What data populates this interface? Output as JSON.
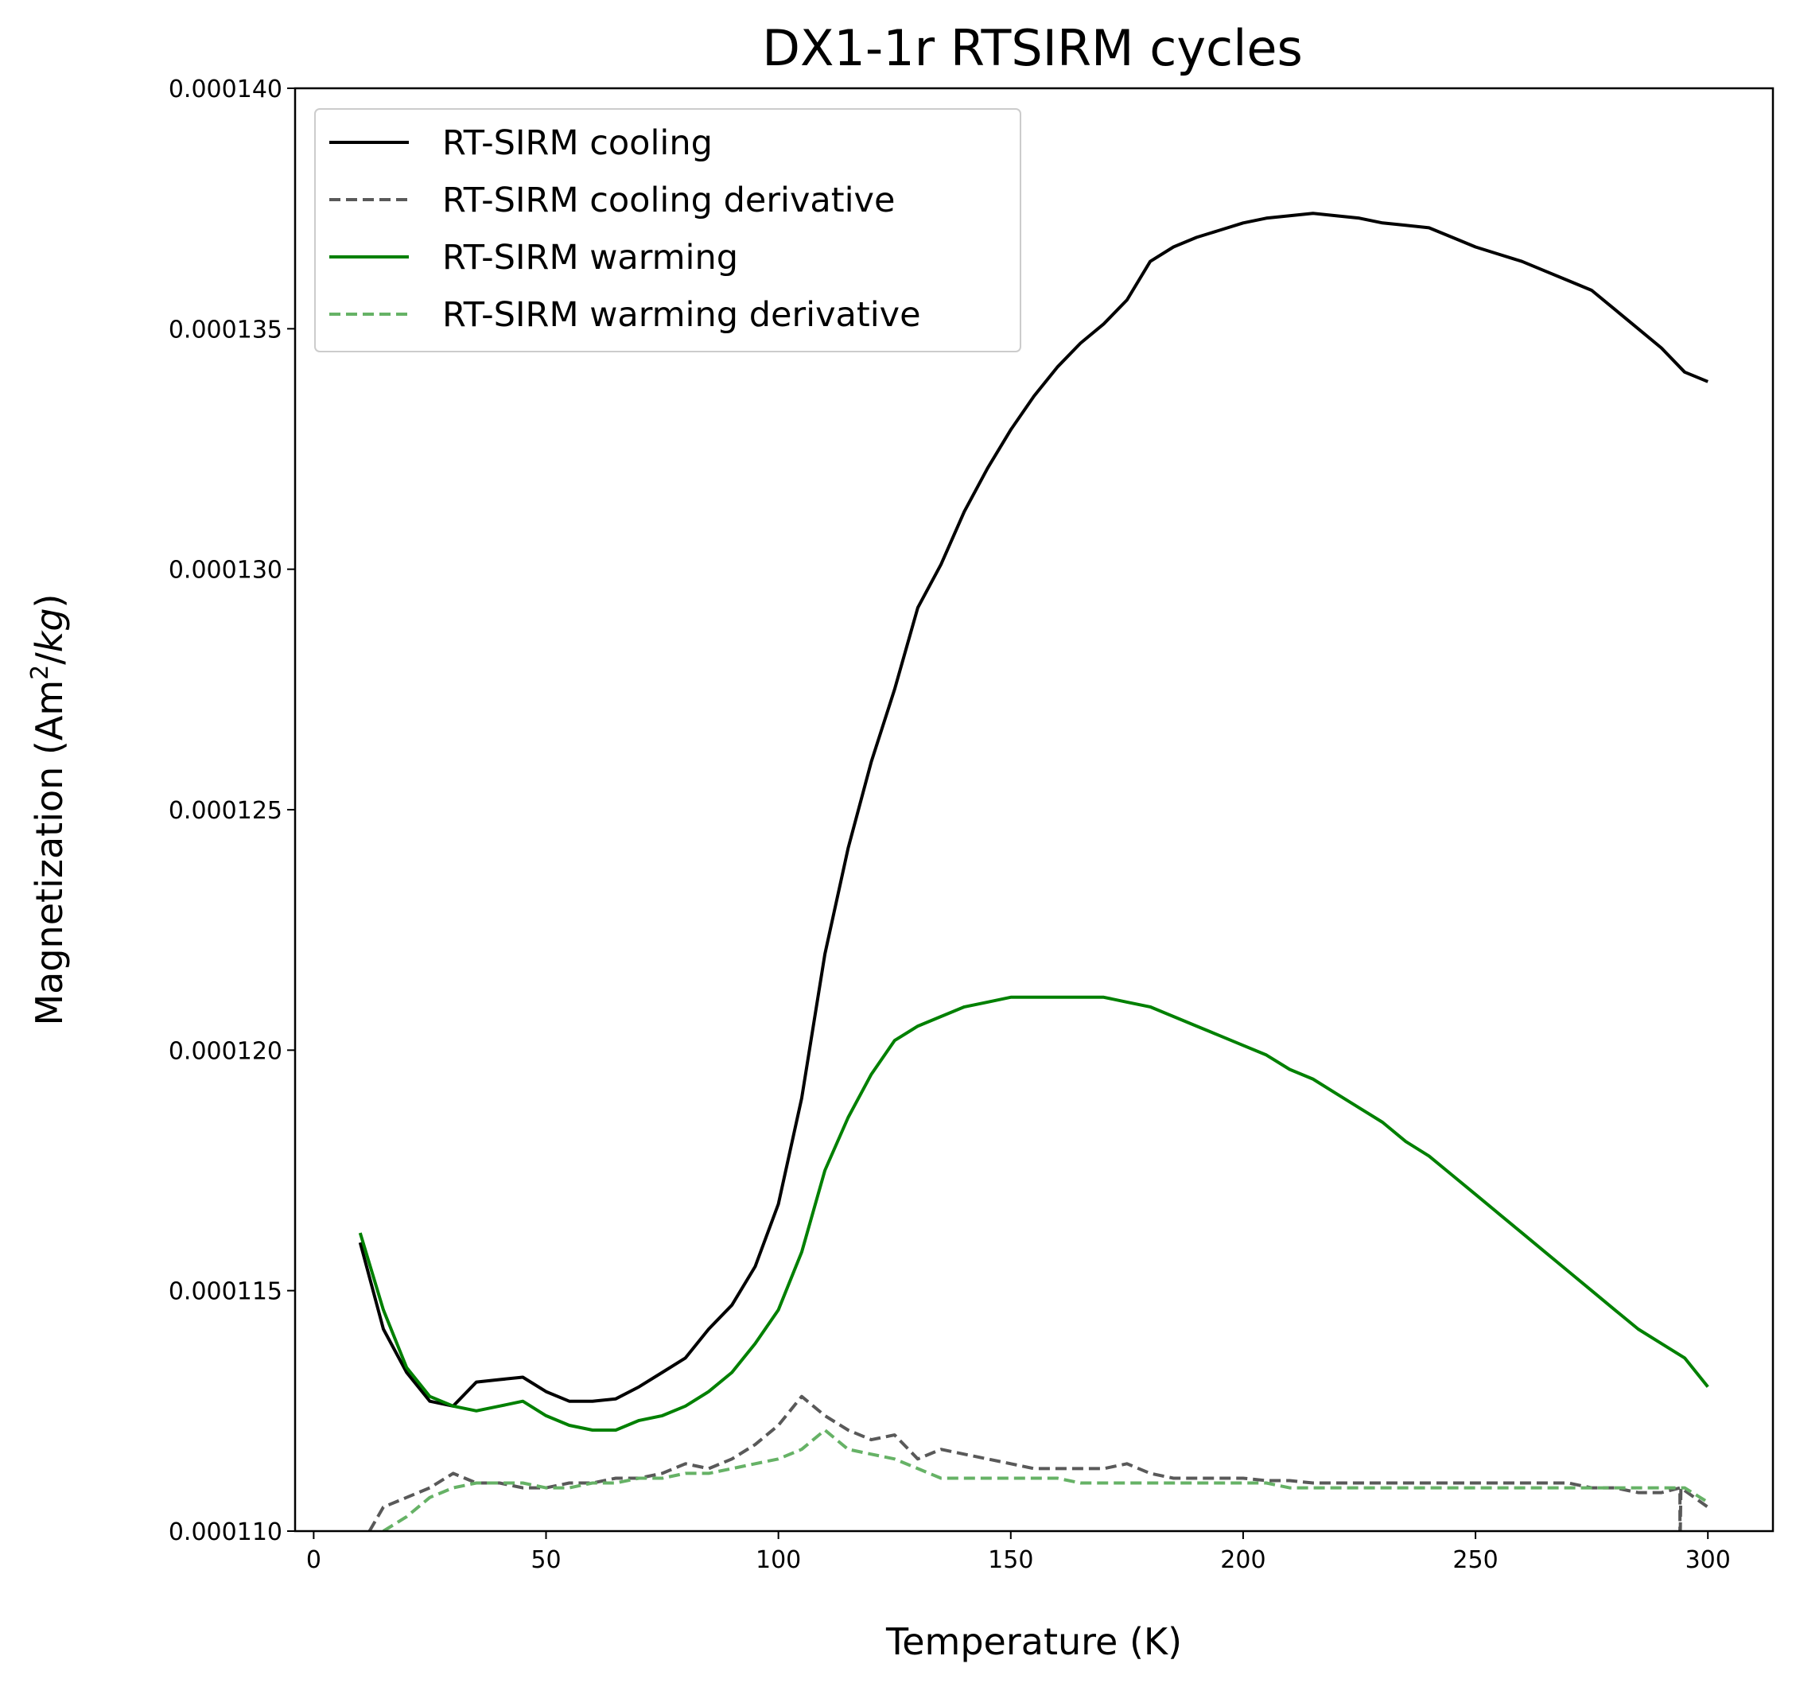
{
  "chart_data": {
    "type": "line",
    "title": "DX1-1r RTSIRM cycles",
    "xlabel": "Temperature (K)",
    "ylabel": {
      "prefix": "Magnetization (Am",
      "sup": "2",
      "slash": "/",
      "unit": "kg",
      "suffix": ")"
    },
    "xlim": [
      -4,
      314
    ],
    "ylim": [
      0.00011,
      0.00014
    ],
    "xticks": [
      0,
      50,
      100,
      150,
      200,
      250,
      300
    ],
    "yticks": [
      0.00011,
      0.000115,
      0.00012,
      0.000125,
      0.00013,
      0.000135,
      0.00014
    ],
    "ytick_labels": [
      "0.000110",
      "0.000115",
      "0.000120",
      "0.000125",
      "0.000130",
      "0.000135",
      "0.000140"
    ],
    "xtick_labels": [
      "0",
      "50",
      "100",
      "150",
      "200",
      "250",
      "300"
    ],
    "grid": false,
    "legend_position": "top-left",
    "series": [
      {
        "name": "RT-SIRM cooling",
        "color": "#000000",
        "dash": "solid",
        "x": [
          10,
          15,
          20,
          25,
          30,
          35,
          40,
          45,
          50,
          55,
          60,
          65,
          70,
          75,
          80,
          85,
          90,
          95,
          100,
          105,
          110,
          115,
          120,
          125,
          130,
          135,
          140,
          145,
          150,
          155,
          160,
          165,
          170,
          175,
          180,
          185,
          190,
          195,
          200,
          205,
          210,
          215,
          220,
          225,
          230,
          235,
          240,
          245,
          250,
          255,
          260,
          265,
          270,
          275,
          280,
          285,
          290,
          295,
          300
        ],
        "y": [
          0.000116,
          0.0001142,
          0.0001133,
          0.0001127,
          0.0001126,
          0.0001131,
          0.00011315,
          0.0001132,
          0.0001129,
          0.0001127,
          0.0001127,
          0.00011275,
          0.000113,
          0.0001133,
          0.0001136,
          0.0001142,
          0.0001147,
          0.0001155,
          0.0001168,
          0.000119,
          0.000122,
          0.0001242,
          0.000126,
          0.0001275,
          0.0001292,
          0.0001301,
          0.0001312,
          0.0001321,
          0.0001329,
          0.0001336,
          0.0001342,
          0.0001347,
          0.0001351,
          0.0001356,
          0.0001364,
          0.0001367,
          0.0001369,
          0.00013705,
          0.0001372,
          0.0001373,
          0.00013735,
          0.0001374,
          0.00013735,
          0.0001373,
          0.0001372,
          0.00013715,
          0.0001371,
          0.0001369,
          0.0001367,
          0.00013655,
          0.0001364,
          0.0001362,
          0.000136,
          0.0001358,
          0.0001354,
          0.000135,
          0.0001346,
          0.0001341,
          0.0001339
        ]
      },
      {
        "name": "RT-SIRM cooling derivative",
        "color": "#595959",
        "dash": "dashed",
        "x": [
          12,
          15,
          20,
          25,
          30,
          35,
          40,
          45,
          50,
          55,
          60,
          65,
          70,
          75,
          80,
          85,
          90,
          95,
          100,
          105,
          110,
          115,
          120,
          125,
          130,
          135,
          140,
          145,
          150,
          155,
          160,
          165,
          170,
          175,
          180,
          185,
          190,
          195,
          200,
          205,
          210,
          215,
          220,
          225,
          230,
          235,
          240,
          245,
          250,
          255,
          260,
          265,
          270,
          275,
          280,
          285,
          290,
          294,
          294,
          294.2,
          300
        ],
        "y": [
          0.00011,
          0.0001105,
          0.0001107,
          0.0001109,
          0.0001112,
          0.000111,
          0.000111,
          0.0001109,
          0.0001109,
          0.000111,
          0.000111,
          0.0001111,
          0.0001111,
          0.0001112,
          0.0001114,
          0.0001113,
          0.0001115,
          0.0001118,
          0.0001122,
          0.0001128,
          0.0001124,
          0.0001121,
          0.0001119,
          0.000112,
          0.0001115,
          0.0001117,
          0.0001116,
          0.0001115,
          0.0001114,
          0.0001113,
          0.0001113,
          0.0001113,
          0.0001113,
          0.0001114,
          0.0001112,
          0.0001111,
          0.0001111,
          0.0001111,
          0.0001111,
          0.00011105,
          0.00011105,
          0.000111,
          0.000111,
          0.000111,
          0.000111,
          0.000111,
          0.000111,
          0.000111,
          0.000111,
          0.000111,
          0.000111,
          0.000111,
          0.000111,
          0.0001109,
          0.0001109,
          0.0001108,
          0.0001108,
          0.0001109,
          0.0001095,
          0.0001109,
          0.0001105
        ]
      },
      {
        "name": "RT-SIRM warming",
        "color": "#008000",
        "dash": "solid",
        "x": [
          10,
          15,
          20,
          25,
          30,
          35,
          40,
          45,
          50,
          55,
          60,
          65,
          70,
          75,
          80,
          85,
          90,
          95,
          100,
          105,
          110,
          115,
          120,
          125,
          130,
          135,
          140,
          145,
          150,
          155,
          160,
          165,
          170,
          175,
          180,
          185,
          190,
          195,
          200,
          205,
          210,
          215,
          220,
          225,
          230,
          235,
          240,
          245,
          250,
          255,
          260,
          265,
          270,
          275,
          280,
          285,
          290,
          295,
          300
        ],
        "y": [
          0.0001162,
          0.0001146,
          0.0001134,
          0.0001128,
          0.0001126,
          0.0001125,
          0.0001126,
          0.0001127,
          0.0001124,
          0.0001122,
          0.0001121,
          0.0001121,
          0.0001123,
          0.0001124,
          0.0001126,
          0.0001129,
          0.0001133,
          0.0001139,
          0.0001146,
          0.0001158,
          0.0001175,
          0.0001186,
          0.0001195,
          0.0001202,
          0.0001205,
          0.0001207,
          0.0001209,
          0.000121,
          0.0001211,
          0.0001211,
          0.0001211,
          0.0001211,
          0.0001211,
          0.000121,
          0.0001209,
          0.0001207,
          0.0001205,
          0.0001203,
          0.0001201,
          0.0001199,
          0.0001196,
          0.0001194,
          0.0001191,
          0.0001188,
          0.0001185,
          0.0001181,
          0.0001178,
          0.0001174,
          0.000117,
          0.0001166,
          0.0001162,
          0.0001158,
          0.0001154,
          0.000115,
          0.0001146,
          0.0001142,
          0.0001139,
          0.0001136,
          0.000113
        ]
      },
      {
        "name": "RT-SIRM warming derivative",
        "color": "#66b266",
        "dash": "dashed",
        "x": [
          15,
          20,
          25,
          30,
          35,
          40,
          45,
          50,
          55,
          60,
          65,
          70,
          75,
          80,
          85,
          90,
          95,
          100,
          105,
          110,
          115,
          120,
          125,
          130,
          135,
          140,
          145,
          150,
          155,
          160,
          165,
          170,
          175,
          180,
          185,
          190,
          195,
          200,
          205,
          210,
          215,
          220,
          225,
          230,
          235,
          240,
          245,
          250,
          255,
          260,
          265,
          270,
          275,
          280,
          285,
          290,
          295,
          300
        ],
        "y": [
          0.00011,
          0.0001103,
          0.0001107,
          0.0001109,
          0.000111,
          0.000111,
          0.000111,
          0.0001109,
          0.0001109,
          0.000111,
          0.000111,
          0.0001111,
          0.0001111,
          0.0001112,
          0.0001112,
          0.0001113,
          0.0001114,
          0.0001115,
          0.0001117,
          0.0001121,
          0.0001117,
          0.0001116,
          0.0001115,
          0.0001113,
          0.0001111,
          0.0001111,
          0.0001111,
          0.0001111,
          0.0001111,
          0.0001111,
          0.000111,
          0.000111,
          0.000111,
          0.000111,
          0.000111,
          0.000111,
          0.000111,
          0.000111,
          0.000111,
          0.0001109,
          0.0001109,
          0.0001109,
          0.0001109,
          0.0001109,
          0.0001109,
          0.0001109,
          0.0001109,
          0.0001109,
          0.0001109,
          0.0001109,
          0.0001109,
          0.0001109,
          0.0001109,
          0.0001109,
          0.0001109,
          0.0001109,
          0.0001109,
          0.0001106
        ]
      }
    ]
  }
}
